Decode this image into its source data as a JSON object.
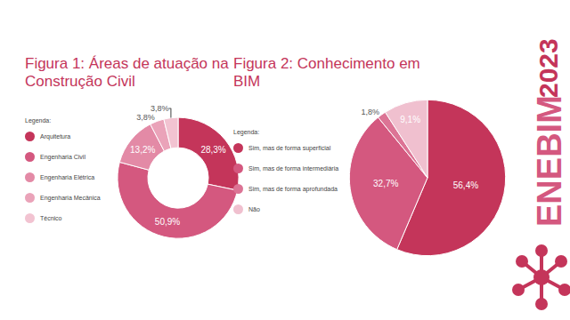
{
  "chart_data": [
    {
      "type": "donut",
      "title": "Figura 1: Áreas de atuação na Construção Civil",
      "legend_title": "Legenda:",
      "legend": "left",
      "categories": [
        "Arquitetura",
        "Engenharia Civil",
        "Engenharia Elétrica",
        "Engenharia Mecânica",
        "Técnico"
      ],
      "values": [
        28.3,
        50.9,
        13.2,
        3.8,
        3.8
      ],
      "value_labels": [
        "28,3%",
        "50,9%",
        "13,2%",
        "3,8%",
        "3,8%"
      ],
      "colors": [
        "#c4355a",
        "#d4587f",
        "#e38aa6",
        "#eaa3b9",
        "#f2c3d1"
      ],
      "data_labels": true
    },
    {
      "type": "pie",
      "title": "Figura 2: Conhecimento em BIM",
      "legend_title": "Legenda:",
      "legend": "left",
      "categories": [
        "Sim, mas de forma superficial",
        "Sim, mas de forma intermediária",
        "Sim, mas de forma aprofundada",
        "Não"
      ],
      "values": [
        56.4,
        32.7,
        1.8,
        9.1
      ],
      "value_labels": [
        "56,4%",
        "32,7%",
        "1,8%",
        "9,1%"
      ],
      "colors": [
        "#c4355a",
        "#d4587f",
        "#dc7495",
        "#f0c0cf"
      ],
      "data_labels": true
    }
  ],
  "branding": {
    "name": "ENEBIM",
    "year": "2023"
  }
}
